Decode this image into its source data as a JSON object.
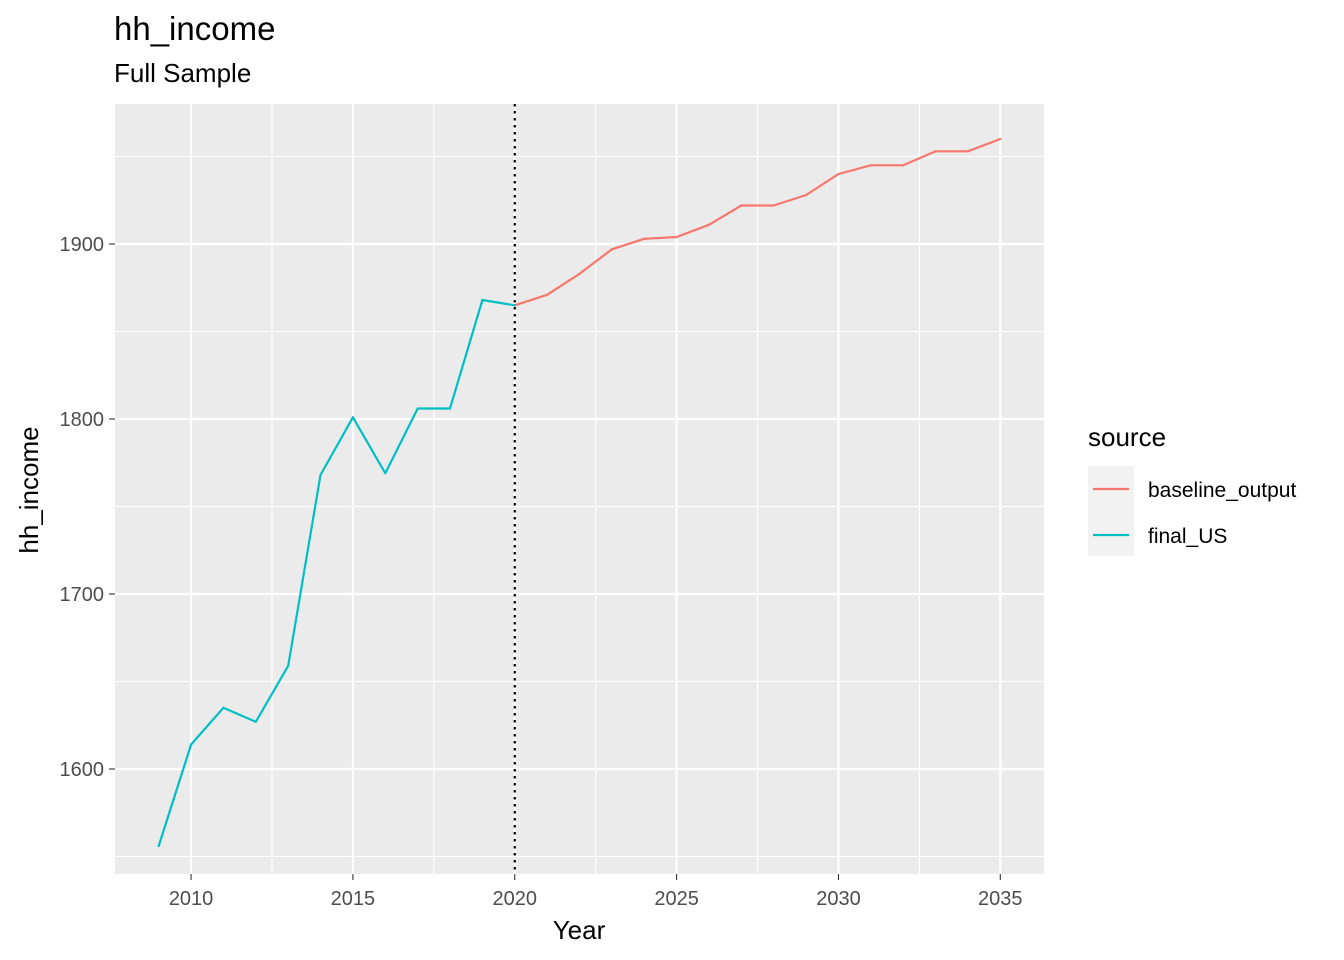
{
  "chart_data": {
    "type": "line",
    "title": "hh_income",
    "subtitle": "Full Sample",
    "xlabel": "Year",
    "ylabel": "hh_income",
    "xlim": [
      2007.65,
      2036.35
    ],
    "ylim": [
      1540,
      1980
    ],
    "x_ticks": [
      2010,
      2015,
      2020,
      2025,
      2030,
      2035
    ],
    "y_ticks": [
      1600,
      1700,
      1800,
      1900
    ],
    "grid": true,
    "vline": {
      "x": 2020,
      "style": "dotted",
      "color": "#000000"
    },
    "legend": {
      "title": "source",
      "placement": "right"
    },
    "series": [
      {
        "name": "baseline_output",
        "color": "#F8766D",
        "x": [
          2020,
          2021,
          2022,
          2023,
          2024,
          2025,
          2026,
          2027,
          2028,
          2029,
          2030,
          2031,
          2032,
          2033,
          2034,
          2035
        ],
        "values": [
          1865,
          1871,
          1883,
          1897,
          1903,
          1904,
          1911,
          1922,
          1922,
          1928,
          1940,
          1945,
          1945,
          1953,
          1953,
          1960
        ]
      },
      {
        "name": "final_US",
        "color": "#00BFC4",
        "x": [
          2009,
          2010,
          2011,
          2012,
          2013,
          2014,
          2015,
          2016,
          2017,
          2018,
          2019,
          2020
        ],
        "values": [
          1556,
          1614,
          1635,
          1627,
          1659,
          1768,
          1801,
          1769,
          1806,
          1806,
          1868,
          1865
        ]
      }
    ]
  }
}
